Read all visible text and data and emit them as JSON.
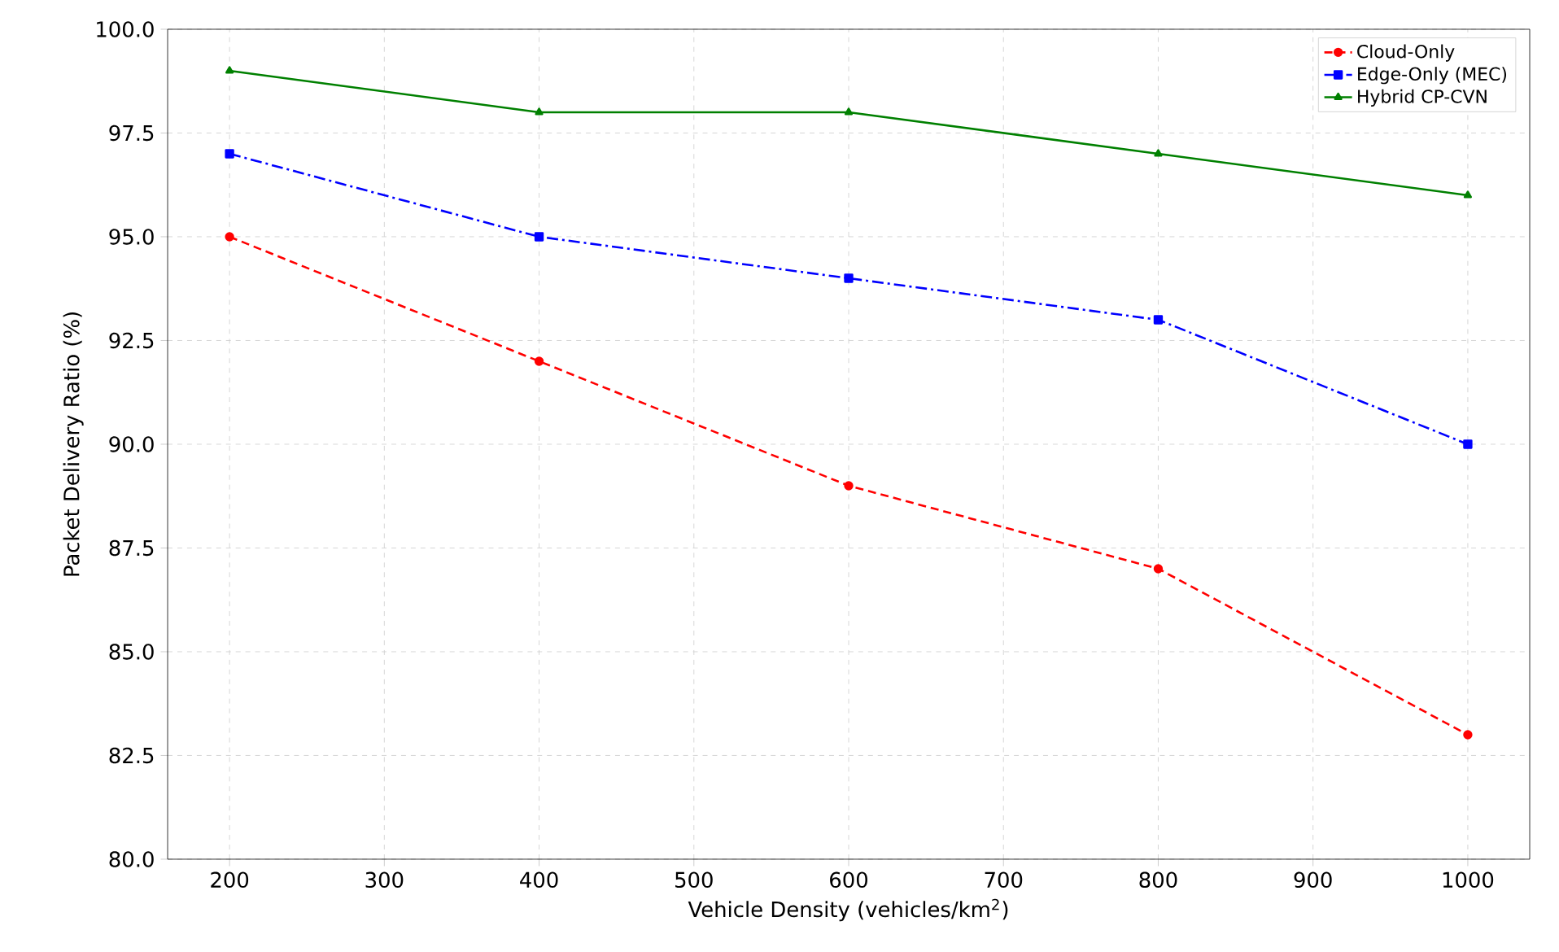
{
  "chart_data": {
    "type": "line",
    "xlabel": "Vehicle Density (vehicles/km$^{2}$)",
    "ylabel": "Packet Delivery Ratio (%)",
    "x": [
      200,
      400,
      600,
      800,
      1000
    ],
    "series": [
      {
        "name": "Cloud-Only",
        "color": "#ff0000",
        "values": [
          95,
          92,
          89,
          87,
          83
        ],
        "marker": "circle",
        "line_style": "dashed"
      },
      {
        "name": "Edge-Only (MEC)",
        "color": "#0000ff",
        "values": [
          97,
          95,
          94,
          93,
          90
        ],
        "marker": "square",
        "line_style": "dashdot"
      },
      {
        "name": "Hybrid CP-CVN",
        "color": "#008000",
        "values": [
          99,
          98,
          98,
          97,
          96
        ],
        "marker": "triangle",
        "line_style": "solid"
      }
    ],
    "xlim": [
      160,
      1040
    ],
    "xticks": [
      200,
      300,
      400,
      500,
      600,
      700,
      800,
      900,
      1000
    ],
    "ylim": [
      80,
      100
    ],
    "yticks": [
      {
        "value": 80,
        "label": "80.0"
      },
      {
        "value": 82.5,
        "label": "82.5"
      },
      {
        "value": 85,
        "label": "85.0"
      },
      {
        "value": 87.5,
        "label": "87.5"
      },
      {
        "value": 90,
        "label": "90.0"
      },
      {
        "value": 92.5,
        "label": "92.5"
      },
      {
        "value": 95,
        "label": "95.0"
      },
      {
        "value": 97.5,
        "label": "97.5"
      },
      {
        "value": 100,
        "label": "100.0"
      }
    ],
    "grid": true,
    "legend": "top right"
  }
}
